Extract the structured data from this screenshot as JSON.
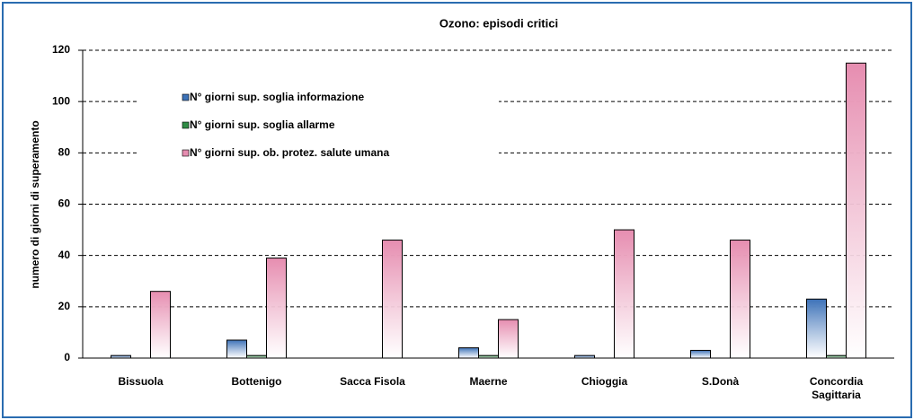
{
  "chart_data": {
    "type": "bar",
    "title": "Ozono: episodi critici",
    "y_label": "numero di giorni di superamento",
    "categories": [
      "Bissuola",
      "Bottenigo",
      "Sacca Fisola",
      "Maerne",
      "Chioggia",
      "S.Donà",
      "Concordia\nSagittaria"
    ],
    "series": [
      {
        "name": "N° giorni sup. soglia informazione",
        "color": "#3d72b8",
        "values": [
          1,
          7,
          0,
          4,
          1,
          3,
          23
        ]
      },
      {
        "name": "N° giorni sup. soglia allarme",
        "color": "#2f8c45",
        "values": [
          0,
          1,
          0,
          1,
          0,
          0,
          1
        ]
      },
      {
        "name": "N° giorni sup. ob. protez. salute umana",
        "color": "#e68db0",
        "values": [
          26,
          39,
          46,
          15,
          50,
          46,
          115
        ]
      }
    ],
    "ylim": [
      0,
      120
    ],
    "yticks": [
      0,
      20,
      40,
      60,
      80,
      100,
      120
    ],
    "grid": true,
    "legend": "upper left"
  }
}
